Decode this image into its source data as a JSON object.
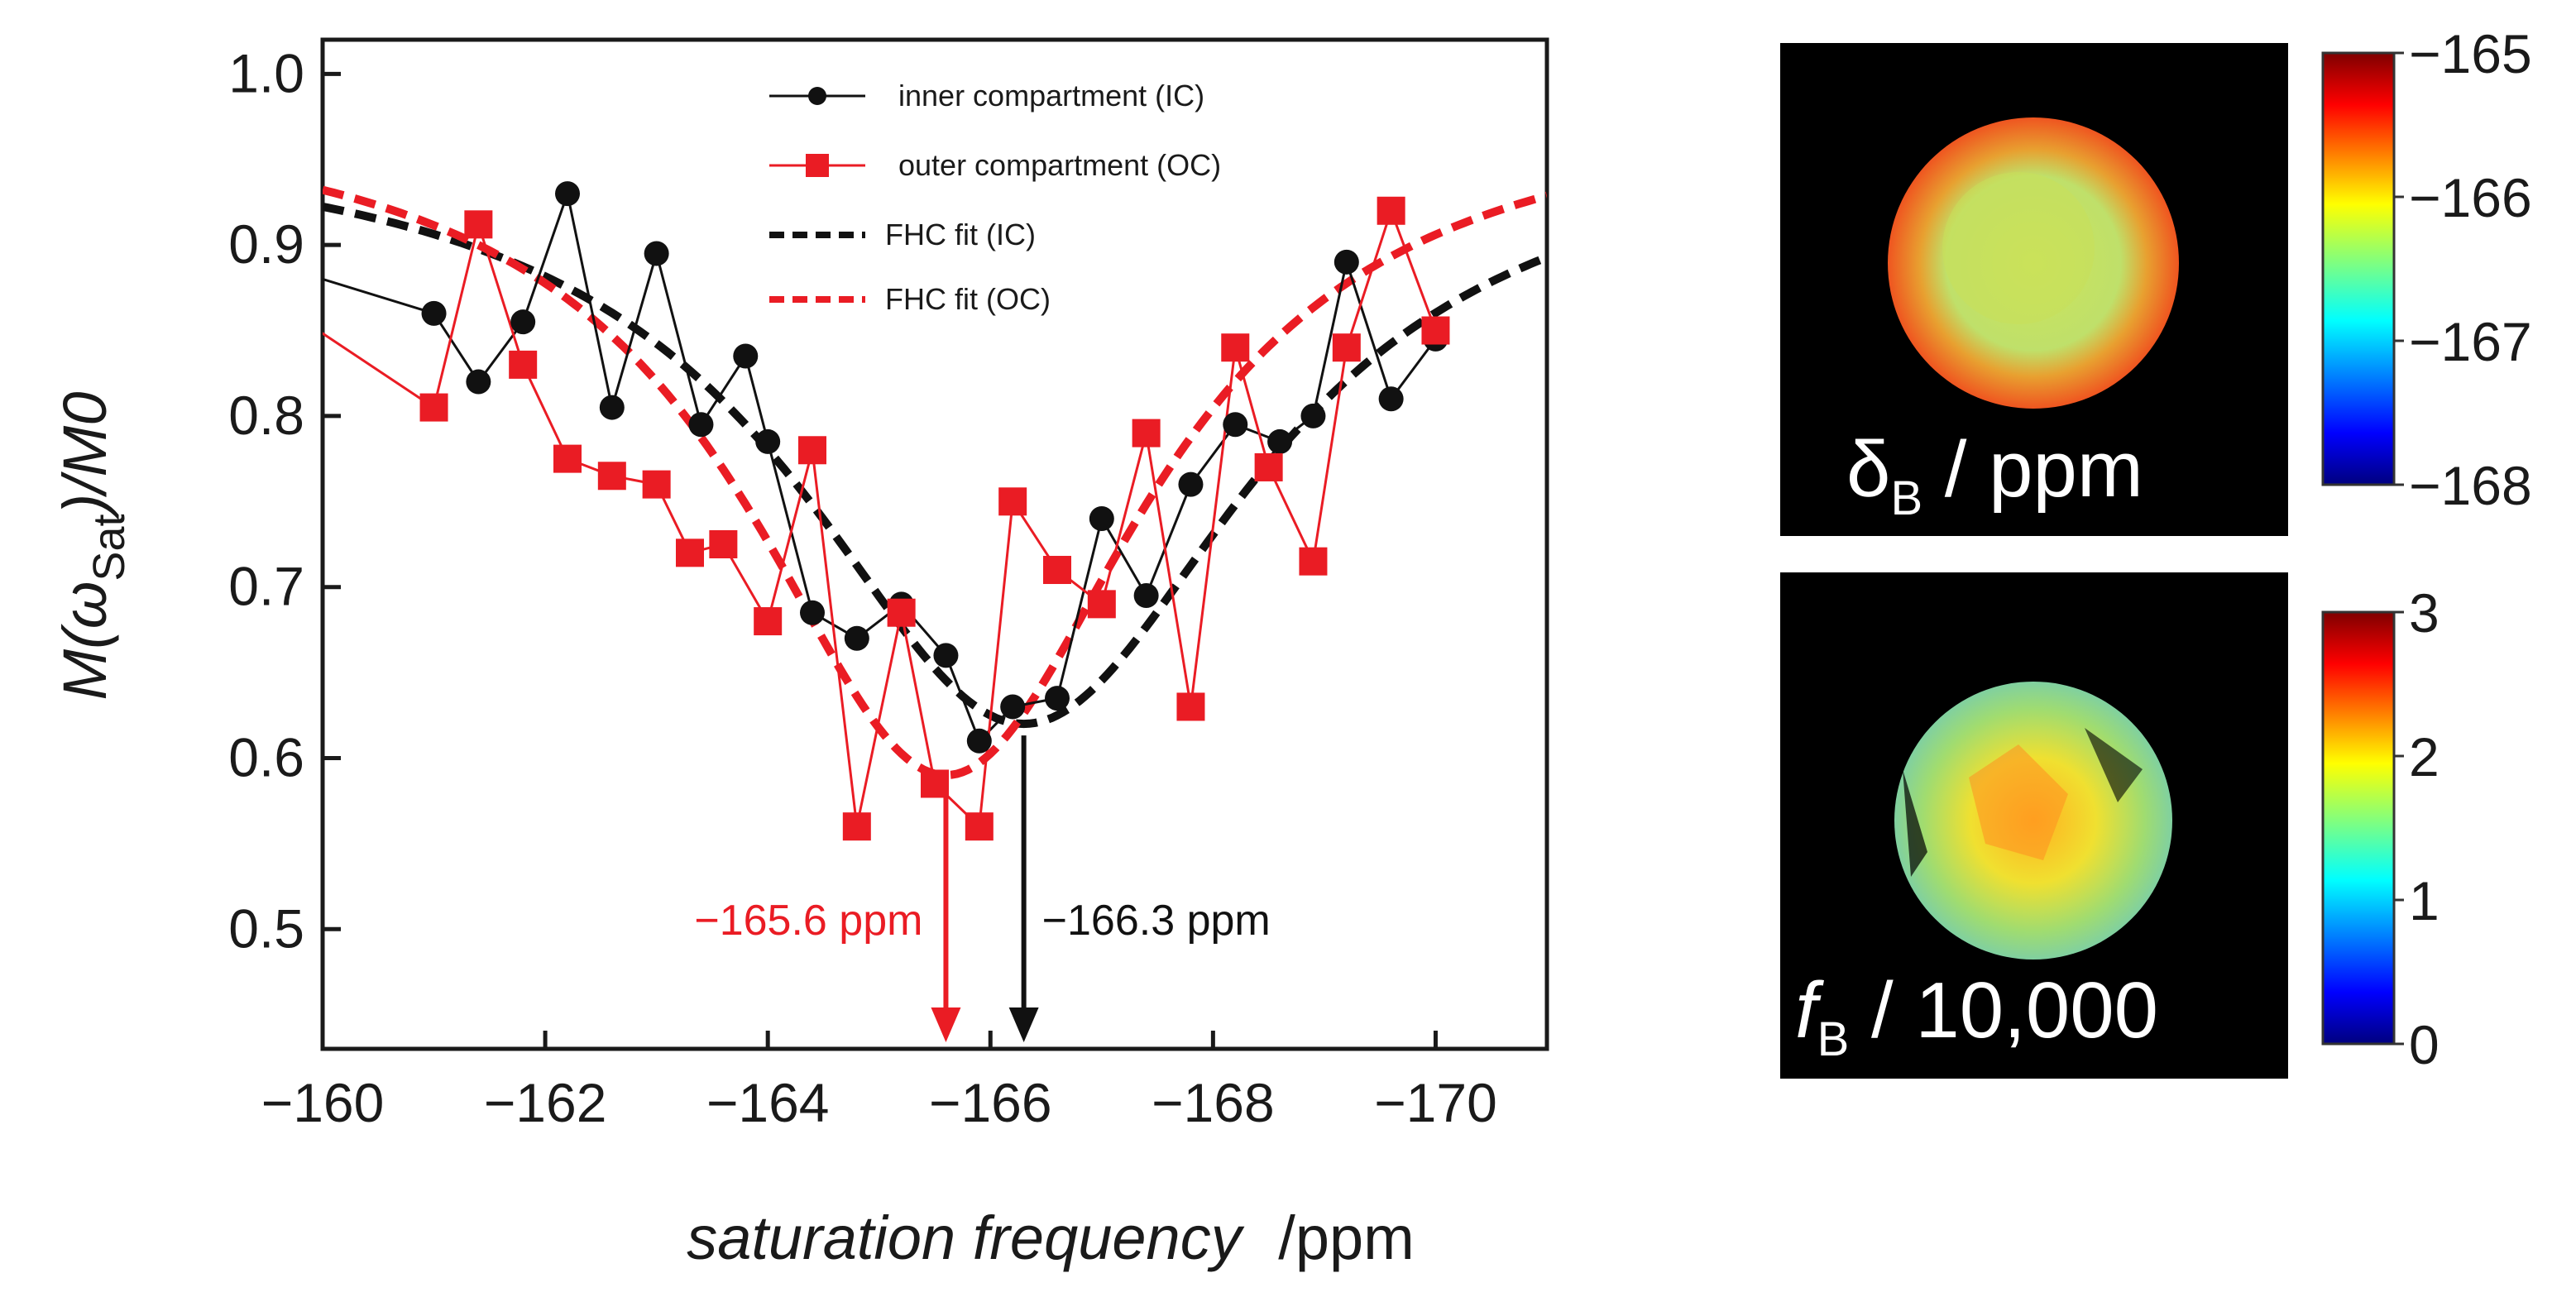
{
  "chart_data": {
    "type": "line",
    "xlabel_italic": "saturation frequency",
    "xlabel_unit": "/ppm",
    "ylabel_base": "M(ω",
    "ylabel_sub": "Sat",
    "ylabel_tail": ")/M0",
    "xlim": [
      -160,
      -171
    ],
    "ylim": [
      0.43,
      1.02
    ],
    "x_ticks": [
      -160,
      -162,
      -164,
      -166,
      -168,
      -170
    ],
    "x_tick_labels": [
      "−160",
      "−162",
      "−164",
      "−166",
      "−168",
      "−170"
    ],
    "y_ticks": [
      0.5,
      0.6,
      0.7,
      0.8,
      0.9,
      1.0
    ],
    "y_tick_labels": [
      "0.5",
      "0.6",
      "0.7",
      "0.8",
      "0.9",
      "1.0"
    ],
    "series": [
      {
        "name": "inner compartment (IC)",
        "color": "#111111",
        "marker": "circle",
        "x": [
          -159.0,
          -161.0,
          -161.4,
          -161.8,
          -162.2,
          -162.6,
          -163.0,
          -163.4,
          -163.8,
          -164.0,
          -164.4,
          -164.8,
          -165.2,
          -165.6,
          -165.9,
          -166.2,
          -166.6,
          -167.0,
          -167.4,
          -167.8,
          -168.2,
          -168.6,
          -168.9,
          -169.2,
          -169.6,
          -170.0
        ],
        "y": [
          0.9,
          0.86,
          0.82,
          0.855,
          0.93,
          0.805,
          0.895,
          0.795,
          0.835,
          0.785,
          0.685,
          0.67,
          0.69,
          0.66,
          0.61,
          0.63,
          0.635,
          0.74,
          0.695,
          0.76,
          0.795,
          0.785,
          0.8,
          0.89,
          0.81,
          0.845
        ]
      },
      {
        "name": "outer compartment (OC)",
        "color": "#ea1c24",
        "marker": "square",
        "x": [
          -159.5,
          -161.0,
          -161.4,
          -161.8,
          -162.2,
          -162.6,
          -163.0,
          -163.3,
          -163.6,
          -164.0,
          -164.4,
          -164.8,
          -165.2,
          -165.5,
          -165.9,
          -166.2,
          -166.6,
          -167.0,
          -167.4,
          -167.8,
          -168.2,
          -168.5,
          -168.9,
          -169.2,
          -169.6,
          -170.0
        ],
        "y": [
          0.87,
          0.805,
          0.912,
          0.83,
          0.775,
          0.765,
          0.76,
          0.72,
          0.725,
          0.68,
          0.78,
          0.56,
          0.685,
          0.585,
          0.56,
          0.75,
          0.71,
          0.69,
          0.79,
          0.63,
          0.84,
          0.77,
          0.715,
          0.84,
          0.92,
          0.85
        ]
      },
      {
        "name": "FHC fit (IC)",
        "color": "#111111",
        "style": "dashed",
        "center": -166.3,
        "baseline": 0.97,
        "depth": 0.35,
        "width": 2.5
      },
      {
        "name": "FHC fit (OC)",
        "color": "#ea1c24",
        "style": "dashed",
        "center": -165.6,
        "baseline": 0.985,
        "depth": 0.395,
        "width": 2.2
      }
    ],
    "annotations": [
      {
        "text": "−165.6 ppm",
        "x": -165.6,
        "color": "#ea1c24"
      },
      {
        "text": "−166.3 ppm",
        "x": -166.3,
        "color": "#111111"
      }
    ],
    "maps": [
      {
        "label_symbol": "δ",
        "label_sub": "B",
        "label_tail": " / ppm",
        "colorbar_ticks": [
          "−165",
          "−166",
          "−167",
          "−168"
        ]
      },
      {
        "label_symbol": "f",
        "label_sub": "B",
        "label_tail": " / 10,000",
        "colorbar_ticks": [
          "3",
          "2",
          "1",
          "0"
        ]
      }
    ]
  }
}
